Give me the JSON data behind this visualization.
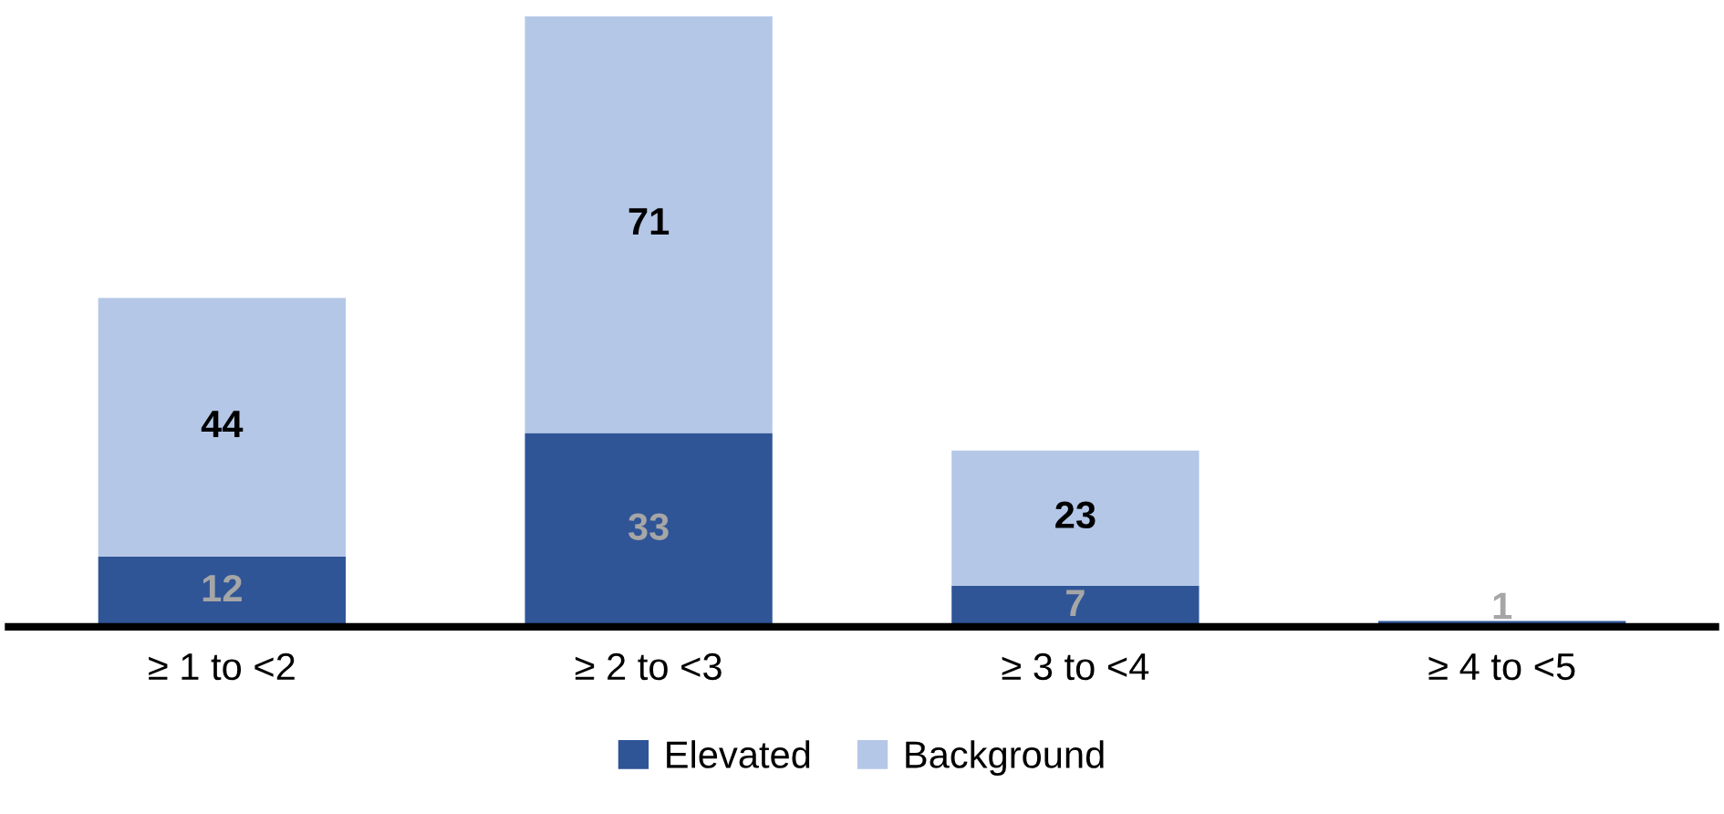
{
  "chart_data": {
    "type": "bar",
    "stacked": true,
    "categories": [
      "≥ 1 to <2",
      "≥ 2 to <3",
      "≥ 3 to <4",
      "≥ 4 to <5"
    ],
    "series": [
      {
        "name": "Elevated",
        "color": "#2f5597",
        "values": [
          12,
          33,
          7,
          1
        ],
        "value_labels": [
          "12",
          "33",
          "7",
          "1"
        ]
      },
      {
        "name": "Background",
        "color": "#b4c7e7",
        "values": [
          44,
          71,
          23,
          null
        ],
        "value_labels": [
          "44",
          "71",
          "23",
          null
        ]
      }
    ],
    "legend": "bottom",
    "grid": false
  }
}
